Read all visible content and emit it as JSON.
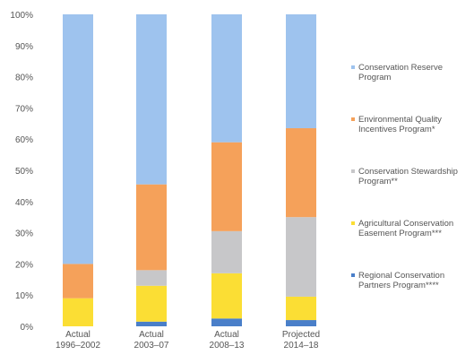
{
  "chart_data": {
    "type": "bar",
    "stacked": true,
    "categories": [
      "Actual\n1996–2002",
      "Actual\n2003–07",
      "Actual\n2008–13",
      "Projected\n2014–18"
    ],
    "y_ticks": [
      "0%",
      "10%",
      "20%",
      "30%",
      "40%",
      "50%",
      "60%",
      "70%",
      "80%",
      "90%",
      "100%"
    ],
    "ylim": [
      0,
      100
    ],
    "grid": false,
    "legend_position": "right",
    "series": [
      {
        "name": "Regional Conservation\nPartners Program****",
        "color": "#4a7fc9",
        "values": [
          0,
          1.5,
          2.5,
          2
        ]
      },
      {
        "name": "Agricultural Conservation\nEasement Program***",
        "color": "#fbde34",
        "values": [
          9,
          11.5,
          14.5,
          7.5
        ]
      },
      {
        "name": "Conservation Stewardship\nProgram**",
        "color": "#c7c7c9",
        "values": [
          0,
          5,
          13.5,
          25.5
        ]
      },
      {
        "name": "Environmental Quality\nIncentives Program*",
        "color": "#f5a15a",
        "values": [
          11,
          27.5,
          28.5,
          28.5
        ]
      },
      {
        "name": "Conservation Reserve\nProgram",
        "color": "#9ec3ee",
        "values": [
          80,
          54.5,
          41,
          36.5
        ]
      }
    ]
  }
}
